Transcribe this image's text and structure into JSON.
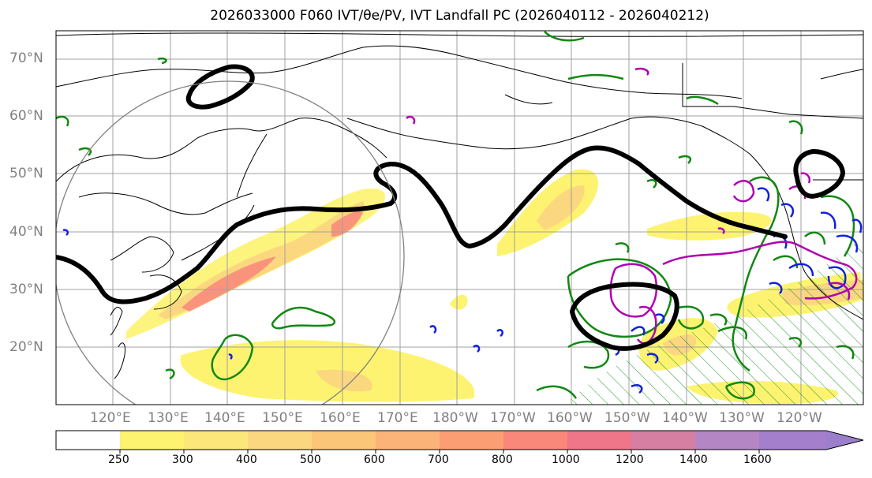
{
  "title": "2026033000 F060 IVT/θe/PV, IVT Landfall PC (2026040112 - 2026040212)",
  "map": {
    "lat_labels": [
      "70°N",
      "60°N",
      "50°N",
      "40°N",
      "30°N",
      "20°N"
    ],
    "lon_labels": [
      "120°E",
      "130°E",
      "140°E",
      "150°E",
      "160°E",
      "170°E",
      "180°W",
      "170°W",
      "160°W",
      "150°W",
      "140°W",
      "130°W",
      "120°W"
    ],
    "extent": {
      "lon_min": 110,
      "lon_max": 252,
      "lat_min": 10,
      "lat_max": 75
    }
  },
  "colorbar": {
    "ticks": [
      "250",
      "300",
      "400",
      "500",
      "600",
      "700",
      "800",
      "1000",
      "1200",
      "1400",
      "1600"
    ],
    "colors": [
      "#ffffff",
      "#fdf370",
      "#fbe77a",
      "#fbd77f",
      "#fcc679",
      "#fcb377",
      "#fc9e74",
      "#f9877a",
      "#ef7588",
      "#d67fa2",
      "#b487c4",
      "#9c7fcc"
    ]
  },
  "contour_colors": {
    "steering_line": "#000000",
    "theta_e": "#118811",
    "pv_positive": "#b000b0",
    "pv_negative": "#1020e0"
  }
}
